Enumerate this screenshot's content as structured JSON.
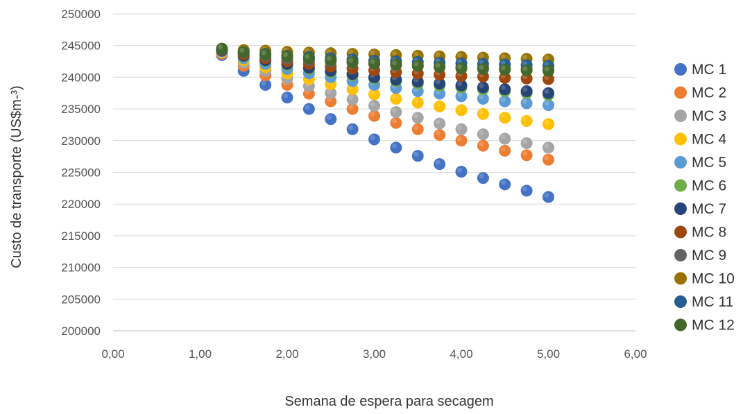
{
  "chart_data": {
    "type": "scatter",
    "title": "",
    "xlabel": "Semana de espera  para secagem",
    "ylabel": "Custo  de transporte  (US$m-³)",
    "xlim": [
      0,
      6
    ],
    "ylim": [
      200000,
      250000
    ],
    "x_ticks": [
      "0,00",
      "1,00",
      "2,00",
      "3,00",
      "4,00",
      "5,00",
      "6,00"
    ],
    "y_ticks": [
      "200000",
      "205000",
      "210000",
      "215000",
      "220000",
      "225000",
      "230000",
      "235000",
      "240000",
      "245000",
      "250000"
    ],
    "grid": "horizontal",
    "legend": "right",
    "x": [
      1.25,
      1.5,
      1.75,
      2.0,
      2.25,
      2.5,
      2.75,
      3.0,
      3.25,
      3.5,
      3.75,
      4.0,
      4.25,
      4.5,
      4.75,
      5.0
    ],
    "series": [
      {
        "name": "MC 1",
        "color": "#4472c4",
        "values": [
          243500,
          241000,
          238800,
          236800,
          235000,
          233400,
          231800,
          230200,
          228900,
          227600,
          226300,
          225100,
          224100,
          223100,
          222100,
          221100
        ]
      },
      {
        "name": "MC 2",
        "color": "#ed7d31",
        "values": [
          243700,
          241800,
          240300,
          238800,
          237400,
          236200,
          235000,
          233900,
          232800,
          231800,
          230900,
          230000,
          229200,
          228400,
          227700,
          227000
        ]
      },
      {
        "name": "MC 3",
        "color": "#a5a5a5",
        "values": [
          243900,
          242300,
          241000,
          239800,
          238600,
          237500,
          236500,
          235500,
          234500,
          233600,
          232700,
          231800,
          231000,
          230300,
          229600,
          228900
        ]
      },
      {
        "name": "MC 4",
        "color": "#ffc000",
        "values": [
          244000,
          242700,
          241600,
          240600,
          239700,
          238900,
          238100,
          237300,
          236600,
          236000,
          235400,
          234800,
          234200,
          233600,
          233100,
          232600
        ]
      },
      {
        "name": "MC 5",
        "color": "#5b9bd5",
        "values": [
          244100,
          243000,
          242100,
          241300,
          240600,
          240000,
          239400,
          238800,
          238300,
          237800,
          237400,
          237000,
          236600,
          236200,
          235900,
          235600
        ]
      },
      {
        "name": "MC 6",
        "color": "#70ad47",
        "values": [
          244200,
          243300,
          242600,
          241900,
          241300,
          240800,
          240300,
          239800,
          239400,
          239000,
          238700,
          238400,
          238100,
          237800,
          237500,
          237200
        ]
      },
      {
        "name": "MC 7",
        "color": "#264478",
        "values": [
          244200,
          243400,
          242700,
          242100,
          241500,
          241000,
          240500,
          240000,
          239600,
          239300,
          239000,
          238700,
          238400,
          238100,
          237800,
          237500
        ]
      },
      {
        "name": "MC 8",
        "color": "#9e480e",
        "values": [
          244300,
          243600,
          243000,
          242500,
          242100,
          241700,
          241400,
          241100,
          240800,
          240600,
          240400,
          240200,
          240100,
          239900,
          239800,
          239700
        ]
      },
      {
        "name": "MC 9",
        "color": "#636363",
        "values": [
          244400,
          243900,
          243400,
          243000,
          242700,
          242500,
          242300,
          242100,
          241900,
          241800,
          241700,
          241600,
          241500,
          241400,
          241300,
          241200
        ]
      },
      {
        "name": "MC 10",
        "color": "#997300",
        "values": [
          244500,
          244300,
          244200,
          244000,
          243900,
          243800,
          243700,
          243600,
          243500,
          243400,
          243300,
          243200,
          243100,
          243000,
          242900,
          242800
        ]
      },
      {
        "name": "MC 11",
        "color": "#255e91",
        "values": [
          244400,
          244000,
          243700,
          243400,
          243200,
          243000,
          242800,
          242600,
          242500,
          242400,
          242300,
          242200,
          242100,
          242000,
          241900,
          241800
        ]
      },
      {
        "name": "MC 12",
        "color": "#43682b",
        "values": [
          244500,
          244000,
          243600,
          243300,
          243000,
          242700,
          242400,
          242200,
          242000,
          241800,
          241600,
          241400,
          241300,
          241200,
          241100,
          241000
        ]
      }
    ]
  }
}
